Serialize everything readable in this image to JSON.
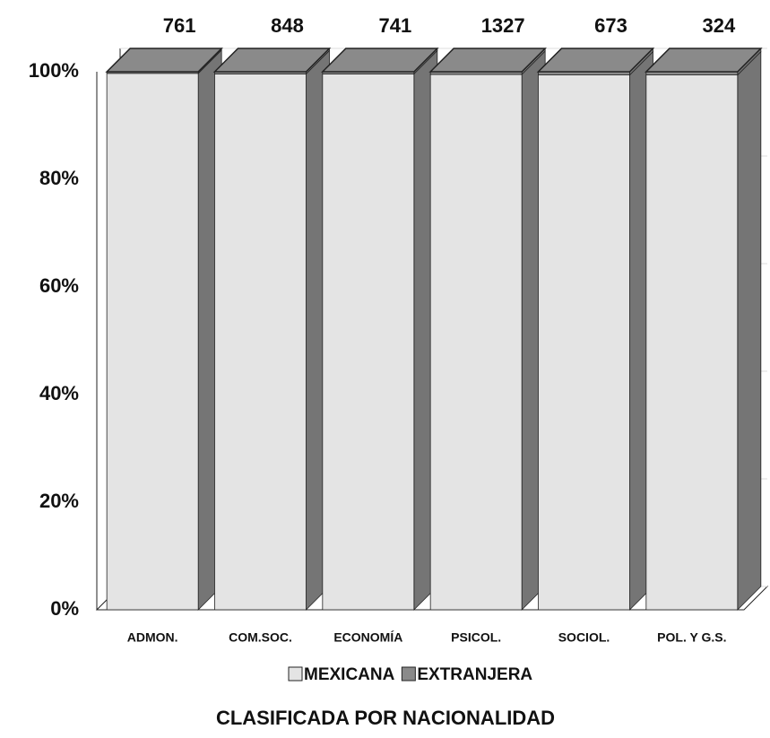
{
  "chart_data": {
    "type": "bar3d_stacked_percent",
    "title": "CLASIFICADA POR NACIONALIDAD",
    "categories": [
      "ADMON.",
      "COM.SOC.",
      "ECONOMÍA",
      "PSICOL.",
      "SOCIOL.",
      "POL. Y G.S."
    ],
    "totals": [
      761,
      848,
      741,
      1327,
      673,
      324
    ],
    "series": [
      {
        "name": "MEXICANA",
        "color": "#e4e4e4",
        "values": [
          99.7,
          99.6,
          99.6,
          99.5,
          99.4,
          99.4
        ]
      },
      {
        "name": "EXTRANJERA",
        "color": "#8a8a8a",
        "values": [
          0.3,
          0.4,
          0.4,
          0.5,
          0.6,
          0.6
        ]
      }
    ],
    "ylim": [
      0,
      100
    ],
    "yticks": [
      {
        "value": 0,
        "label": "0%"
      },
      {
        "value": 20,
        "label": "20%"
      },
      {
        "value": 40,
        "label": "40%"
      },
      {
        "value": 60,
        "label": "60%"
      },
      {
        "value": 80,
        "label": "80%"
      },
      {
        "value": 100,
        "label": "100%"
      }
    ],
    "grid": true
  }
}
